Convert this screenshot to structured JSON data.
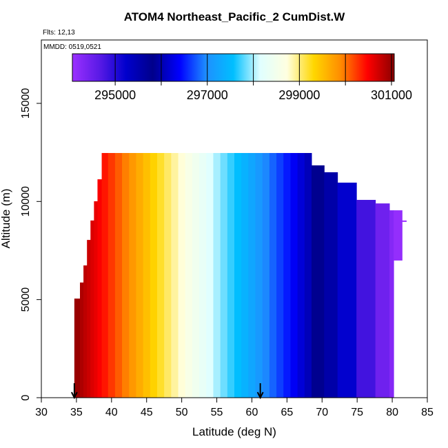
{
  "chart_data": {
    "type": "heatmap",
    "title": "ATOM4 Northeast_Pacific_2 CumDist.W",
    "subtitle": "Flts: 12,13",
    "annotation": "MMDD: 0519,0521",
    "x_label": "Latitude (deg N)",
    "y_label": "Altitude (m)",
    "xlim": [
      30,
      85
    ],
    "xticks": [
      30,
      35,
      40,
      45,
      50,
      55,
      60,
      65,
      70,
      75,
      80,
      85
    ],
    "ylim": [
      0,
      18230
    ],
    "yticks": [
      0,
      5000,
      10000,
      15000
    ],
    "lat_edges": [
      34.7,
      35.5,
      36,
      36.5,
      37,
      37.5,
      38,
      38.6,
      39.5,
      40.5,
      41.5,
      42.5,
      43.5,
      44.5,
      45.5,
      46.5,
      47.5,
      48.5,
      49.5,
      50.5,
      51.5,
      52.5,
      53.5,
      54.5,
      55.5,
      56.5,
      57.5,
      58.5,
      59.5,
      60.5,
      61.5,
      62.5,
      63.5,
      64.5,
      65.5,
      66.5,
      67.5,
      68.5,
      70.3,
      72.2,
      74.9,
      77.6,
      79.6,
      80.2,
      81.4,
      82
    ],
    "bottoms": [
      0,
      0,
      0,
      0,
      0,
      0,
      0,
      0,
      0,
      0,
      0,
      0,
      0,
      0,
      0,
      0,
      0,
      0,
      0,
      0,
      0,
      0,
      0,
      0,
      0,
      0,
      0,
      0,
      0,
      0,
      0,
      0,
      0,
      0,
      0,
      0,
      0,
      0,
      0,
      0,
      0,
      0,
      0,
      6990,
      8960
    ],
    "tops": [
      5050,
      5870,
      6740,
      8040,
      9030,
      10010,
      11130,
      12470,
      12470,
      12470,
      12470,
      12470,
      12470,
      12470,
      12470,
      12470,
      12470,
      12470,
      12470,
      12470,
      12470,
      12470,
      12470,
      12470,
      12470,
      12470,
      12470,
      12470,
      12470,
      12470,
      12470,
      12470,
      12470,
      12470,
      12470,
      12470,
      12470,
      11840,
      11490,
      10960,
      10080,
      9900,
      9550,
      9550,
      9030
    ],
    "values": [
      300990,
      300890,
      300810,
      300740,
      300660,
      300590,
      300500,
      300390,
      300250,
      300100,
      299950,
      299800,
      299650,
      299500,
      299350,
      299200,
      299050,
      298900,
      298750,
      298600,
      298450,
      298300,
      298150,
      298000,
      297850,
      297700,
      297550,
      297400,
      297250,
      297100,
      296950,
      296800,
      296650,
      296500,
      296350,
      296200,
      296050,
      295840,
      295560,
      295220,
      294810,
      294460,
      294270,
      294130,
      294000
    ],
    "zlim": [
      294070,
      301060
    ],
    "colors": [
      "#9b30ff",
      "#5a1ae6",
      "#0000cd",
      "#00008b",
      "#0000ff",
      "#1e90ff",
      "#00bfff",
      "#e0ffff",
      "#ffffe0",
      "#ffd700",
      "#ff8c00",
      "#ff0000",
      "#8b0000"
    ],
    "colorbar_ticks": [
      295000,
      297000,
      299000,
      301000
    ],
    "colorbar_minor_ticks": [
      296000,
      298000,
      300000
    ],
    "arrows_lat": [
      34.7,
      61.2
    ]
  }
}
